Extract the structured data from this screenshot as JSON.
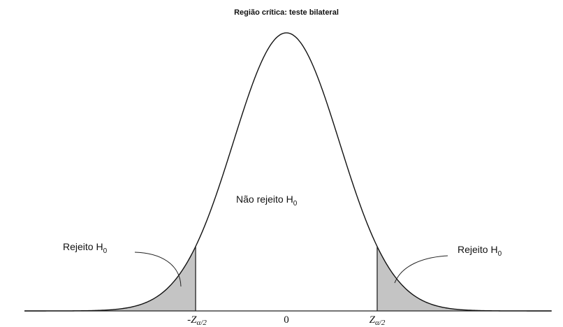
{
  "title": "Região crítica: teste bilateral",
  "center_label": {
    "text": "Não rejeito H",
    "sub": "0"
  },
  "left_label": {
    "text": "Rejeito H",
    "sub": "0"
  },
  "right_label": {
    "text": "Rejeito H",
    "sub": "0"
  },
  "axis_labels": {
    "left": {
      "text": "-Z",
      "sub": "α/2"
    },
    "center": "0",
    "right": {
      "text": "Z",
      "sub": "α/2"
    }
  }
}
